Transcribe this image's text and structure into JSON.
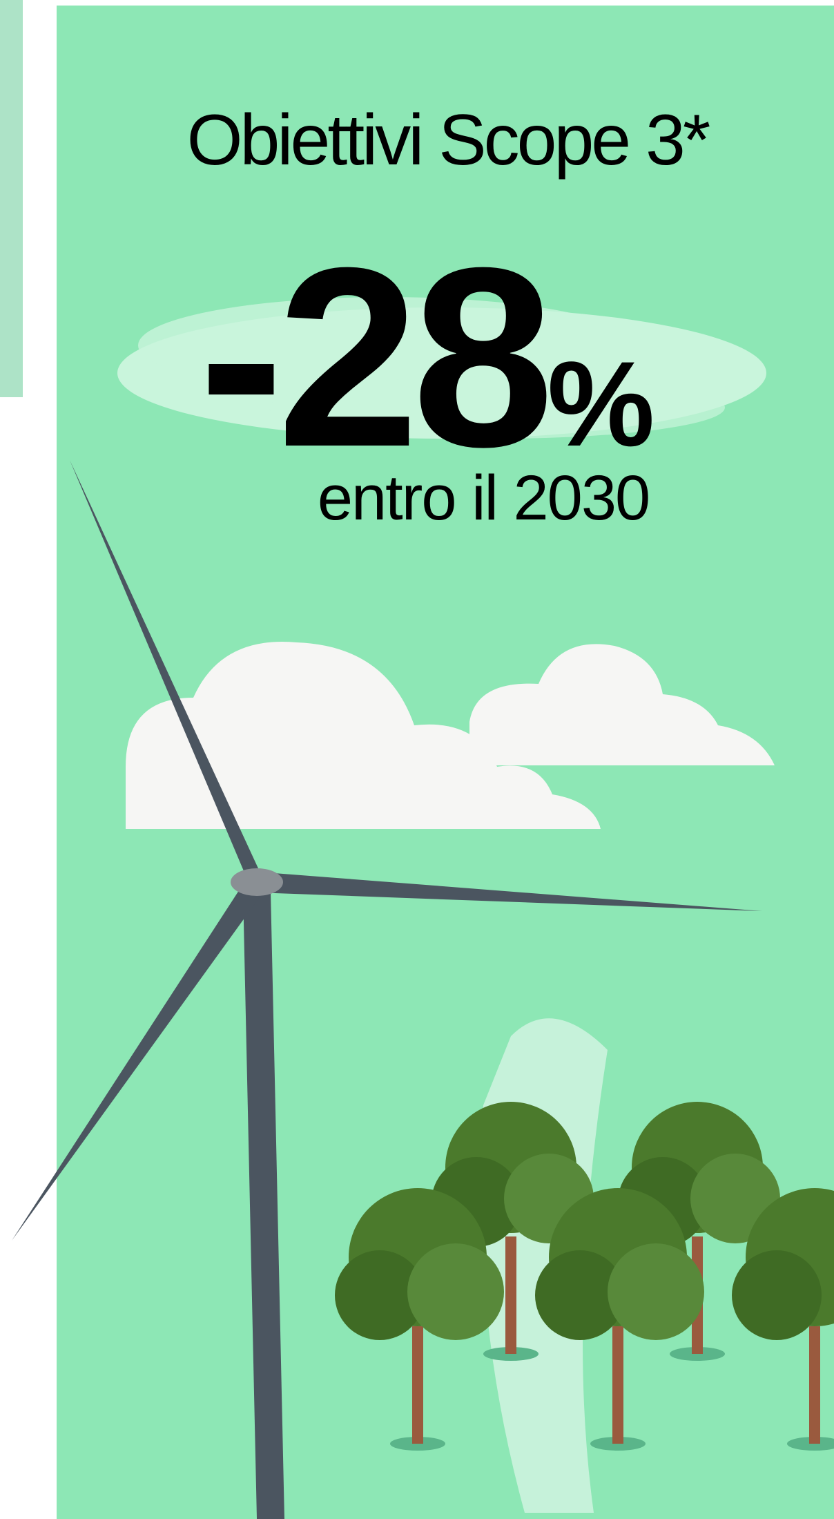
{
  "title": "Obiettivi Scope 3*",
  "figure": {
    "number": "-28",
    "unit": "%"
  },
  "subtitle": "entro il 2030"
}
